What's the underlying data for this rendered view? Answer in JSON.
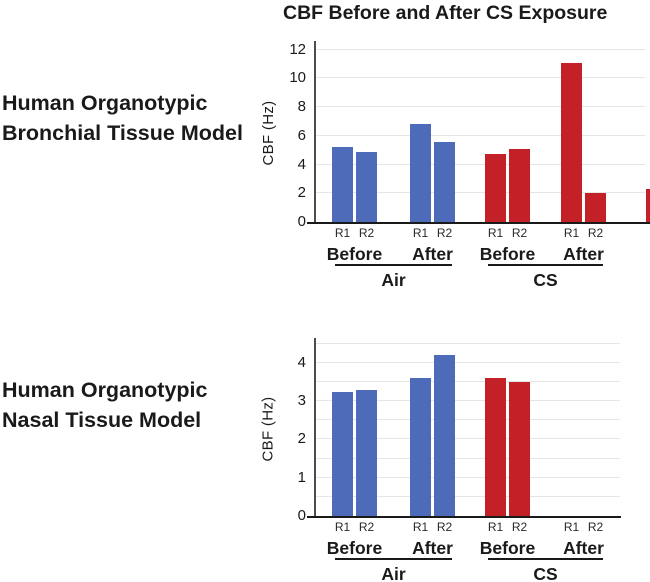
{
  "figure_title": "CBF Before and After CS Exposure",
  "colors": {
    "air_blue": "#4e6bba",
    "cs_red": "#c32127",
    "gridline": "#e6e6e6",
    "axis": "#4d4d4d",
    "baseline": "#1a1a1a",
    "text": "#1a1a1a"
  },
  "chart_data": [
    {
      "type": "bar",
      "panel": "top",
      "model_lines": [
        "Human Organotypic",
        "Bronchial Tissue Model"
      ],
      "ylabel": "CBF (Hz)",
      "ylim": [
        0,
        12.4
      ],
      "yticks": [
        0,
        2,
        4,
        6,
        8,
        10,
        12
      ],
      "gridline_step": 2,
      "grid": true,
      "groups": [
        {
          "condition": "Air",
          "color": "#4e6bba",
          "phases": [
            {
              "label": "Before",
              "bars": [
                {
                  "label": "R1",
                  "value": 5.2
                },
                {
                  "label": "R2",
                  "value": 4.9
                }
              ]
            },
            {
              "label": "After",
              "bars": [
                {
                  "label": "R1",
                  "value": 6.8
                },
                {
                  "label": "R2",
                  "value": 5.6
                }
              ]
            }
          ]
        },
        {
          "condition": "CS",
          "color": "#c32127",
          "phases": [
            {
              "label": "Before",
              "bars": [
                {
                  "label": "R1",
                  "value": 4.75
                },
                {
                  "label": "R2",
                  "value": 5.1
                }
              ]
            },
            {
              "label": "After",
              "bars": [
                {
                  "label": "R1",
                  "value": 11.1
                },
                {
                  "label": "R2",
                  "value": 2.0
                }
              ]
            }
          ]
        }
      ],
      "clipped_bar_right_edge": {
        "visible_value": 2.3,
        "color": "#c32127"
      }
    },
    {
      "type": "bar",
      "panel": "bottom",
      "model_lines": [
        "Human Organotypic",
        "Nasal Tissue Model"
      ],
      "ylabel": "CBF (Hz)",
      "ylim": [
        0,
        4.57
      ],
      "yticks": [
        0,
        1,
        2,
        3,
        4
      ],
      "gridline_step": 0.5,
      "grid": true,
      "groups": [
        {
          "condition": "Air",
          "color": "#4e6bba",
          "phases": [
            {
              "label": "Before",
              "bars": [
                {
                  "label": "R1",
                  "value": 3.25
                },
                {
                  "label": "R2",
                  "value": 3.3
                }
              ]
            },
            {
              "label": "After",
              "bars": [
                {
                  "label": "R1",
                  "value": 3.6
                },
                {
                  "label": "R2",
                  "value": 4.2
                }
              ]
            }
          ]
        },
        {
          "condition": "CS",
          "color": "#c32127",
          "phases": [
            {
              "label": "Before",
              "bars": [
                {
                  "label": "R1",
                  "value": 3.6
                },
                {
                  "label": "R2",
                  "value": 3.5
                }
              ]
            },
            {
              "label": "After",
              "bars": [
                {
                  "label": "R1",
                  "value": null
                },
                {
                  "label": "R2",
                  "value": null
                }
              ]
            }
          ]
        }
      ]
    }
  ]
}
